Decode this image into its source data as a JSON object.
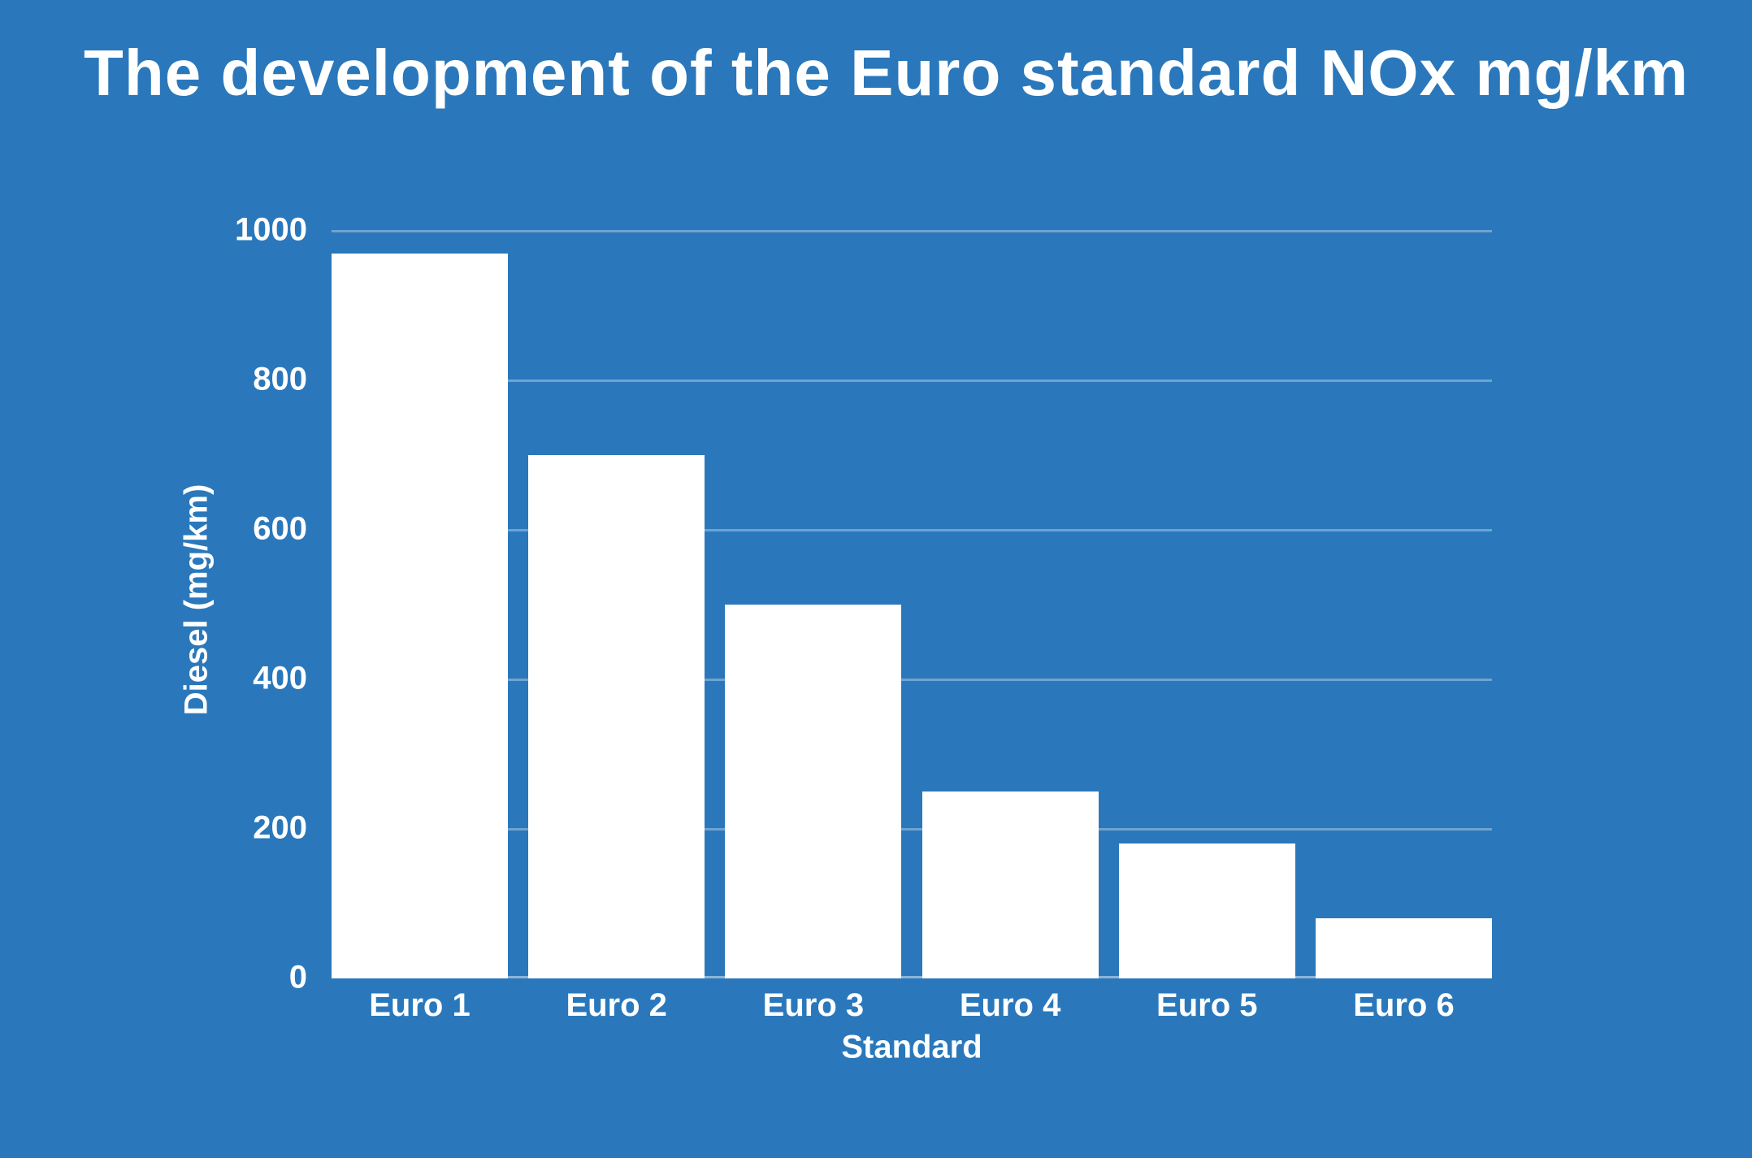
{
  "colors": {
    "background": "#2a78bb",
    "bar": "#ffffff",
    "gridline": "rgba(255,255,255,0.32)",
    "baseline": "rgba(255,255,255,0.45)",
    "text": "#ffffff"
  },
  "chart_data": {
    "type": "bar",
    "title": "The development of the Euro standard NOx mg/km",
    "categories": [
      "Euro 1",
      "Euro 2",
      "Euro 3",
      "Euro 4",
      "Euro 5",
      "Euro 6"
    ],
    "values": [
      970,
      700,
      500,
      250,
      180,
      80
    ],
    "xlabel": "Standard",
    "ylabel": "Diesel (mg/km)",
    "ylim": [
      0,
      1000
    ],
    "yticks": [
      0,
      200,
      400,
      600,
      800,
      1000
    ],
    "gridlines_at": [
      200,
      400,
      600,
      800,
      1000
    ],
    "grid": true,
    "legend": "none",
    "bar_color": "#ffffff",
    "background": "#2a78bb"
  }
}
